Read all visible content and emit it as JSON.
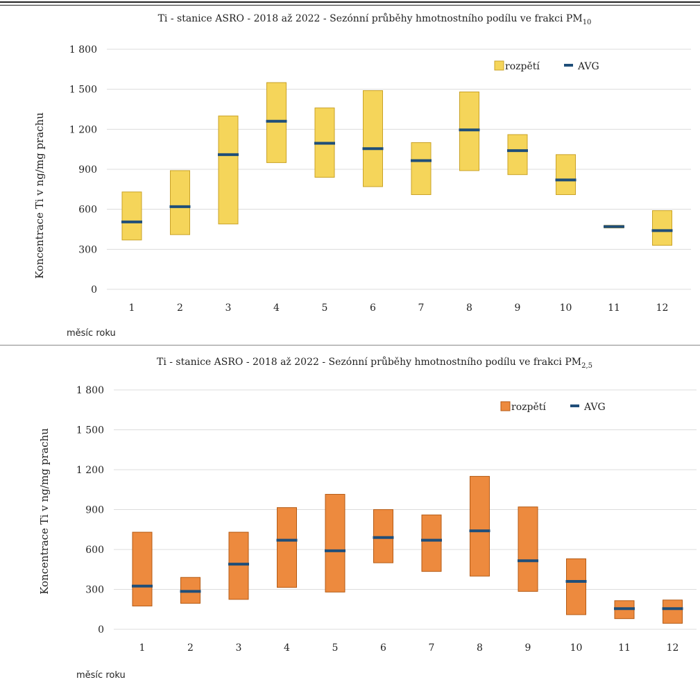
{
  "chart_data": [
    {
      "type": "bar",
      "title": "Ti - stanice ASRO - 2018 až 2022 - Sezónní průběhy hmotnostního podílu ve frakci PM",
      "title_sub": "10",
      "ylabel": "Koncentrace Ti v ng/mg prachu",
      "xlabel": "měsíc roku",
      "ylim": [
        0,
        1800
      ],
      "yticks": [
        0,
        300,
        600,
        900,
        1200,
        1500,
        1800
      ],
      "ytick_labels": [
        "0",
        "300",
        "600",
        "900",
        "1 200",
        "1 500",
        "1 800"
      ],
      "categories": [
        "1",
        "2",
        "3",
        "4",
        "5",
        "6",
        "7",
        "8",
        "9",
        "10",
        "11",
        "12"
      ],
      "grid": true,
      "legend_position": "top-right",
      "bar_color": "#f5d55a",
      "bar_stroke": "#c9a227",
      "avg_color": "#1f4e79",
      "series": [
        {
          "name": "rozpětí",
          "min": [
            370,
            410,
            490,
            950,
            840,
            770,
            710,
            890,
            860,
            710,
            460,
            330
          ],
          "max": [
            730,
            890,
            1300,
            1550,
            1360,
            1490,
            1100,
            1480,
            1160,
            1010,
            480,
            590
          ]
        },
        {
          "name": "AVG",
          "values": [
            505,
            620,
            1010,
            1260,
            1095,
            1055,
            965,
            1195,
            1040,
            820,
            470,
            440
          ]
        }
      ]
    },
    {
      "type": "bar",
      "title": "Ti - stanice ASRO - 2018 až 2022 - Sezónní průběhy hmotnostního podílu ve frakci PM",
      "title_sub": "2,5",
      "ylabel": "Koncentrace Ti v ng/mg prachu",
      "xlabel": "měsíc roku",
      "ylim": [
        0,
        1800
      ],
      "yticks": [
        0,
        300,
        600,
        900,
        1200,
        1500,
        1800
      ],
      "ytick_labels": [
        "0",
        "300",
        "600",
        "900",
        "1 200",
        "1 500",
        "1 800"
      ],
      "categories": [
        "1",
        "2",
        "3",
        "4",
        "5",
        "6",
        "7",
        "8",
        "9",
        "10",
        "11",
        "12"
      ],
      "grid": true,
      "legend_position": "top-right",
      "bar_color": "#ed8a3e",
      "bar_stroke": "#b45a14",
      "avg_color": "#1f4e79",
      "series": [
        {
          "name": "rozpětí",
          "min": [
            175,
            195,
            225,
            315,
            280,
            500,
            435,
            400,
            285,
            110,
            80,
            45
          ],
          "max": [
            730,
            390,
            730,
            915,
            1015,
            900,
            860,
            1150,
            920,
            530,
            215,
            220
          ]
        },
        {
          "name": "AVG",
          "values": [
            325,
            285,
            490,
            670,
            590,
            690,
            670,
            740,
            515,
            360,
            155,
            155
          ]
        }
      ]
    }
  ]
}
